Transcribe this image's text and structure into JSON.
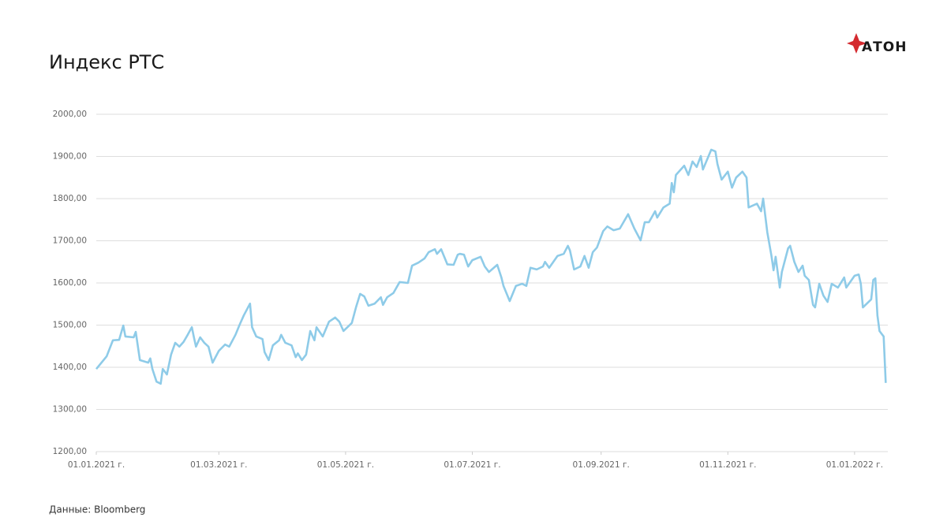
{
  "chart_data": {
    "type": "line",
    "title": "Индекс РТС",
    "logo": "АТОН",
    "source": "Данные: Bloomberg",
    "color": "#8ecbe8",
    "grid": true,
    "ylim": [
      1200,
      2000
    ],
    "yticks": [
      {
        "value": 1200,
        "label": "1200,00"
      },
      {
        "value": 1300,
        "label": "1300,00"
      },
      {
        "value": 1400,
        "label": "1400,00"
      },
      {
        "value": 1500,
        "label": "1500,00"
      },
      {
        "value": 1600,
        "label": "1600,00"
      },
      {
        "value": 1700,
        "label": "1700,00"
      },
      {
        "value": 1800,
        "label": "1800,00"
      },
      {
        "value": 1900,
        "label": "1900,00"
      },
      {
        "value": 2000,
        "label": "2000,00"
      }
    ],
    "xlim": [
      "2021-01-01",
      "2022-01-17"
    ],
    "xticks": [
      {
        "value": "2021-01-01",
        "label": "01.01.2021 г."
      },
      {
        "value": "2021-03-01",
        "label": "01.03.2021 г."
      },
      {
        "value": "2021-05-01",
        "label": "01.05.2021 г."
      },
      {
        "value": "2021-07-01",
        "label": "01.07.2021 г."
      },
      {
        "value": "2021-09-01",
        "label": "01.09.2021 г."
      },
      {
        "value": "2021-11-01",
        "label": "01.11.2021 г."
      },
      {
        "value": "2022-01-01",
        "label": "01.01.2022 г."
      }
    ],
    "x": [
      "2021-01-01",
      "2021-01-06",
      "2021-01-09",
      "2021-01-12",
      "2021-01-14",
      "2021-01-15",
      "2021-01-19",
      "2021-01-20",
      "2021-01-22",
      "2021-01-26",
      "2021-01-27",
      "2021-01-28",
      "2021-01-30",
      "2021-02-01",
      "2021-02-02",
      "2021-02-04",
      "2021-02-06",
      "2021-02-08",
      "2021-02-10",
      "2021-02-12",
      "2021-02-14",
      "2021-02-16",
      "2021-02-17",
      "2021-02-18",
      "2021-02-20",
      "2021-02-22",
      "2021-02-24",
      "2021-02-26",
      "2021-03-01",
      "2021-03-04",
      "2021-03-06",
      "2021-03-09",
      "2021-03-11",
      "2021-03-13",
      "2021-03-16",
      "2021-03-17",
      "2021-03-19",
      "2021-03-22",
      "2021-03-23",
      "2021-03-25",
      "2021-03-27",
      "2021-03-30",
      "2021-03-31",
      "2021-04-02",
      "2021-04-05",
      "2021-04-07",
      "2021-04-08",
      "2021-04-10",
      "2021-04-12",
      "2021-04-14",
      "2021-04-16",
      "2021-04-17",
      "2021-04-20",
      "2021-04-23",
      "2021-04-26",
      "2021-04-28",
      "2021-04-30",
      "2021-05-04",
      "2021-05-06",
      "2021-05-08",
      "2021-05-10",
      "2021-05-12",
      "2021-05-15",
      "2021-05-18",
      "2021-05-19",
      "2021-05-21",
      "2021-05-24",
      "2021-05-27",
      "2021-05-31",
      "2021-06-02",
      "2021-06-05",
      "2021-06-08",
      "2021-06-10",
      "2021-06-13",
      "2021-06-14",
      "2021-06-16",
      "2021-06-19",
      "2021-06-22",
      "2021-06-24",
      "2021-06-25",
      "2021-06-27",
      "2021-06-29",
      "2021-07-01",
      "2021-07-05",
      "2021-07-07",
      "2021-07-09",
      "2021-07-13",
      "2021-07-15",
      "2021-07-16",
      "2021-07-19",
      "2021-07-22",
      "2021-07-25",
      "2021-07-27",
      "2021-07-29",
      "2021-08-01",
      "2021-08-04",
      "2021-08-05",
      "2021-08-07",
      "2021-08-11",
      "2021-08-14",
      "2021-08-16",
      "2021-08-17",
      "2021-08-19",
      "2021-08-22",
      "2021-08-24",
      "2021-08-26",
      "2021-08-28",
      "2021-08-30",
      "2021-09-02",
      "2021-09-04",
      "2021-09-07",
      "2021-09-10",
      "2021-09-14",
      "2021-09-17",
      "2021-09-20",
      "2021-09-22",
      "2021-09-24",
      "2021-09-27",
      "2021-09-28",
      "2021-10-01",
      "2021-10-04",
      "2021-10-05",
      "2021-10-06",
      "2021-10-07",
      "2021-10-11",
      "2021-10-13",
      "2021-10-15",
      "2021-10-17",
      "2021-10-19",
      "2021-10-20",
      "2021-10-24",
      "2021-10-26",
      "2021-10-27",
      "2021-10-29",
      "2021-11-01",
      "2021-11-03",
      "2021-11-05",
      "2021-11-08",
      "2021-11-10",
      "2021-11-11",
      "2021-11-15",
      "2021-11-17",
      "2021-11-18",
      "2021-11-20",
      "2021-11-22",
      "2021-11-23",
      "2021-11-24",
      "2021-11-26",
      "2021-11-27",
      "2021-11-30",
      "2021-12-01",
      "2021-12-03",
      "2021-12-05",
      "2021-12-07",
      "2021-12-08",
      "2021-12-10",
      "2021-12-12",
      "2021-12-13",
      "2021-12-15",
      "2021-12-17",
      "2021-12-19",
      "2021-12-21",
      "2021-12-24",
      "2021-12-27",
      "2021-12-28",
      "2022-01-01",
      "2022-01-03",
      "2022-01-04",
      "2022-01-05",
      "2022-01-09",
      "2022-01-10",
      "2022-01-11",
      "2022-01-12",
      "2022-01-13",
      "2022-01-15",
      "2022-01-16"
    ],
    "values": [
      1396,
      1426,
      1464,
      1465,
      1499,
      1473,
      1471,
      1484,
      1417,
      1411,
      1421,
      1396,
      1366,
      1361,
      1396,
      1383,
      1430,
      1458,
      1449,
      1460,
      1477,
      1495,
      1471,
      1449,
      1471,
      1458,
      1449,
      1411,
      1439,
      1454,
      1449,
      1477,
      1501,
      1523,
      1551,
      1495,
      1473,
      1467,
      1436,
      1417,
      1452,
      1464,
      1477,
      1458,
      1452,
      1424,
      1433,
      1417,
      1430,
      1486,
      1464,
      1495,
      1473,
      1508,
      1518,
      1508,
      1486,
      1505,
      1542,
      1574,
      1568,
      1546,
      1551,
      1566,
      1548,
      1566,
      1576,
      1602,
      1600,
      1641,
      1648,
      1658,
      1673,
      1680,
      1669,
      1680,
      1644,
      1643,
      1667,
      1669,
      1667,
      1639,
      1654,
      1662,
      1639,
      1626,
      1643,
      1613,
      1593,
      1557,
      1593,
      1598,
      1593,
      1636,
      1632,
      1639,
      1650,
      1636,
      1664,
      1669,
      1688,
      1677,
      1632,
      1639,
      1664,
      1636,
      1673,
      1684,
      1723,
      1734,
      1725,
      1729,
      1763,
      1729,
      1701,
      1744,
      1744,
      1770,
      1755,
      1779,
      1788,
      1837,
      1815,
      1856,
      1878,
      1856,
      1888,
      1875,
      1901,
      1869,
      1916,
      1912,
      1882,
      1845,
      1864,
      1826,
      1850,
      1864,
      1850,
      1779,
      1788,
      1770,
      1800,
      1720,
      1664,
      1630,
      1662,
      1589,
      1626,
      1682,
      1688,
      1650,
      1626,
      1641,
      1617,
      1607,
      1548,
      1542,
      1598,
      1570,
      1555,
      1598,
      1589,
      1613,
      1589,
      1617,
      1620,
      1598,
      1542,
      1561,
      1607,
      1611,
      1523,
      1486,
      1473,
      1363
    ]
  }
}
